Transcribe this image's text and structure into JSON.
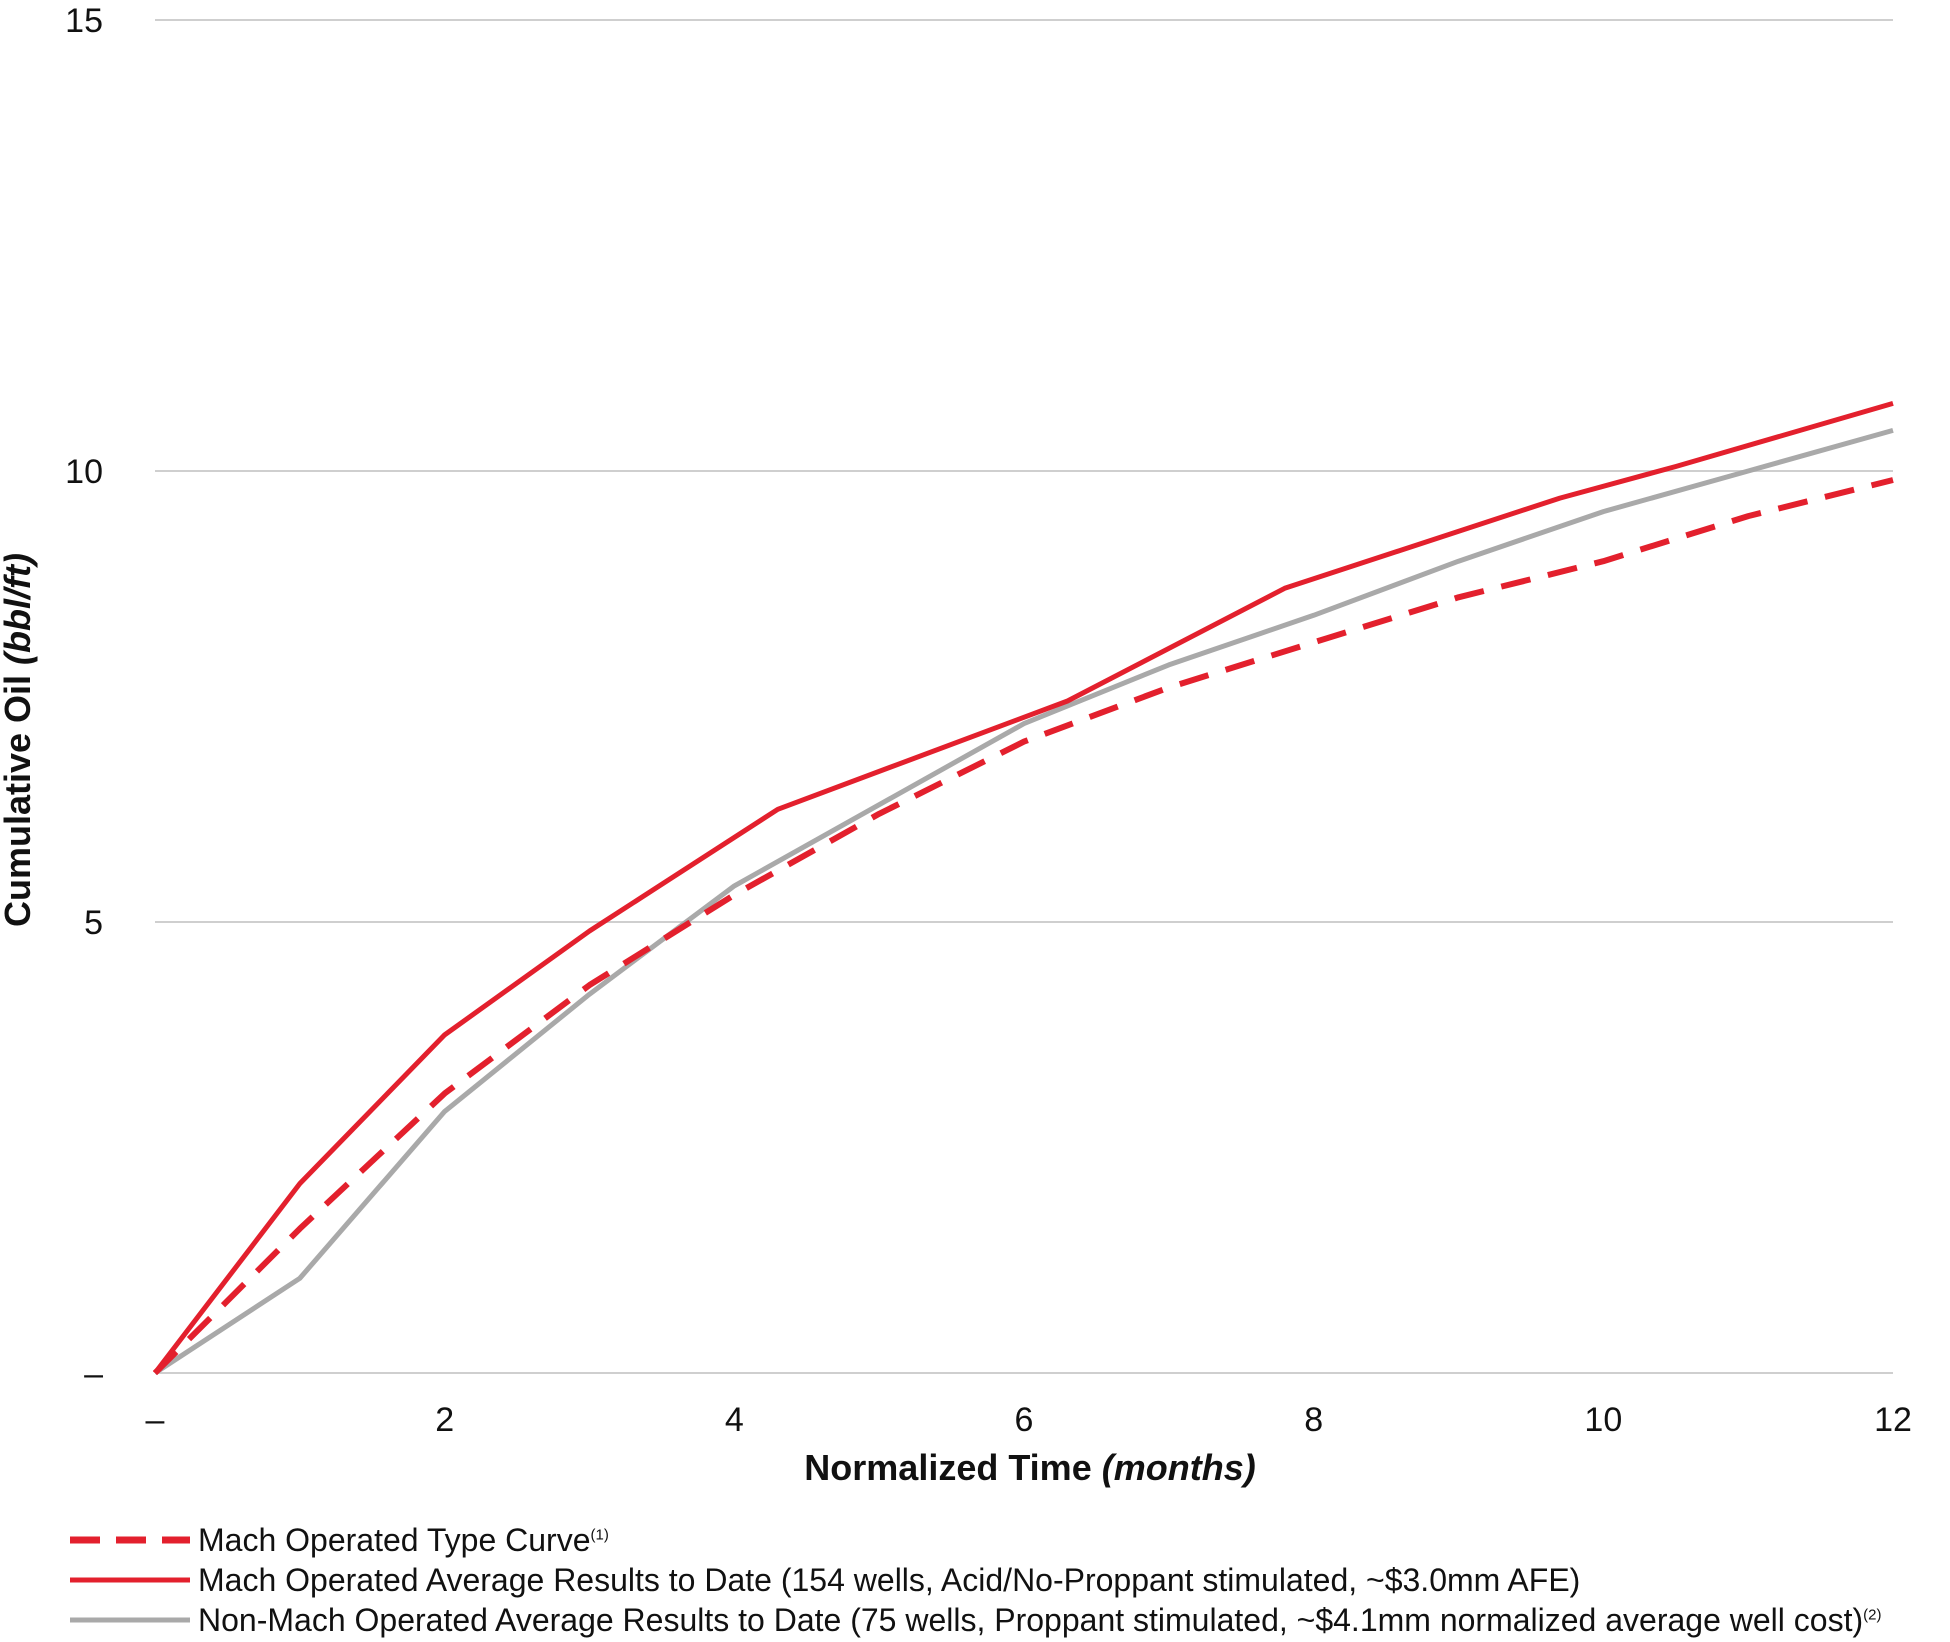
{
  "chart_data": {
    "type": "line",
    "xlabel": "Normalized Time",
    "xlabel_italic": "(months)",
    "ylabel": "Cumulative Oil",
    "ylabel_italic": "(bbl/ft)",
    "xlim": [
      0,
      12
    ],
    "ylim": [
      0,
      15
    ],
    "xticks": [
      0,
      2,
      4,
      6,
      8,
      10,
      12
    ],
    "xtick_labels": [
      "–",
      "2",
      "4",
      "6",
      "8",
      "10",
      "12"
    ],
    "yticks": [
      0,
      5,
      10,
      15
    ],
    "ytick_labels": [
      "–",
      "5",
      "10",
      "15"
    ],
    "grid": true,
    "legend_position": "bottom-left",
    "series": [
      {
        "name": "Mach Operated Type Curve",
        "sup": "(1)",
        "color": "#e3202d",
        "style": "dashed",
        "x": [
          0,
          1,
          2,
          3,
          4,
          5,
          6,
          7,
          8,
          9,
          10,
          11,
          12
        ],
        "y": [
          0,
          1.6,
          3.1,
          4.3,
          5.3,
          6.2,
          7.0,
          7.6,
          8.1,
          8.6,
          9.0,
          9.5,
          9.9
        ]
      },
      {
        "name": "Mach Operated Average Results to Date (154 wells, Acid/No-Proppant stimulated, ~$3.0mm AFE)",
        "sup": "",
        "color": "#e3202d",
        "style": "solid",
        "x": [
          0,
          1,
          2,
          3,
          4.3,
          6.3,
          7.8,
          9.7,
          10.5,
          12
        ],
        "y": [
          0,
          2.1,
          3.75,
          4.9,
          6.25,
          7.45,
          8.7,
          9.7,
          10.05,
          10.75
        ]
      },
      {
        "name": "Non-Mach Operated Average Results to Date (75 wells, Proppant stimulated, ~$4.1mm normalized average well cost)",
        "sup": "(2)",
        "color": "#a9a9a9",
        "style": "solid",
        "x": [
          0,
          1,
          2,
          3,
          4,
          5,
          6,
          7,
          8,
          9,
          10,
          11,
          12
        ],
        "y": [
          0,
          1.05,
          2.9,
          4.2,
          5.4,
          6.3,
          7.2,
          7.85,
          8.4,
          9.0,
          9.55,
          10.0,
          10.45
        ]
      }
    ]
  }
}
